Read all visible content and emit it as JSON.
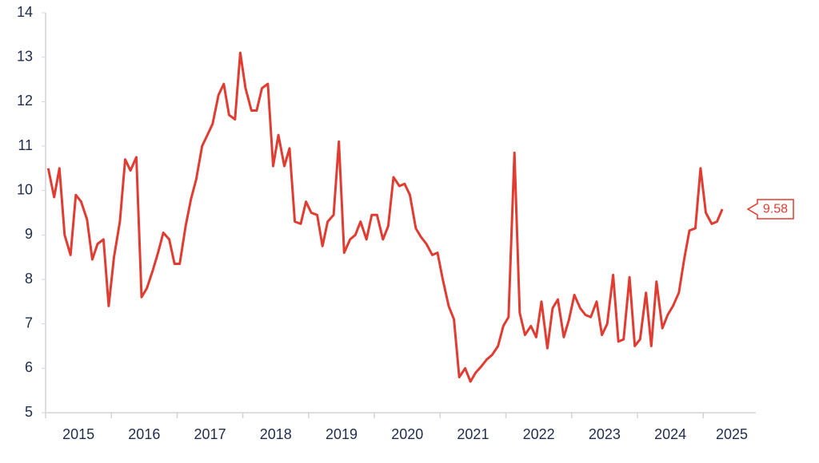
{
  "chart_data": {
    "type": "line",
    "x": [
      2015.04,
      2015.13,
      2015.21,
      2015.29,
      2015.38,
      2015.46,
      2015.54,
      2015.63,
      2015.71,
      2015.79,
      2015.88,
      2015.96,
      2016.04,
      2016.13,
      2016.21,
      2016.29,
      2016.38,
      2016.46,
      2016.54,
      2016.63,
      2016.71,
      2016.79,
      2016.88,
      2016.96,
      2017.04,
      2017.13,
      2017.21,
      2017.29,
      2017.38,
      2017.46,
      2017.54,
      2017.63,
      2017.71,
      2017.79,
      2017.88,
      2017.96,
      2018.04,
      2018.13,
      2018.21,
      2018.29,
      2018.38,
      2018.46,
      2018.54,
      2018.63,
      2018.71,
      2018.79,
      2018.88,
      2018.96,
      2019.04,
      2019.13,
      2019.21,
      2019.29,
      2019.38,
      2019.46,
      2019.54,
      2019.63,
      2019.71,
      2019.79,
      2019.88,
      2019.96,
      2020.04,
      2020.13,
      2020.21,
      2020.29,
      2020.38,
      2020.46,
      2020.54,
      2020.63,
      2020.71,
      2020.79,
      2020.88,
      2020.96,
      2021.04,
      2021.13,
      2021.21,
      2021.29,
      2021.38,
      2021.46,
      2021.54,
      2021.63,
      2021.71,
      2021.79,
      2021.88,
      2021.96,
      2022.04,
      2022.13,
      2022.21,
      2022.29,
      2022.38,
      2022.46,
      2022.54,
      2022.63,
      2022.71,
      2022.79,
      2022.88,
      2022.96,
      2023.04,
      2023.13,
      2023.21,
      2023.29,
      2023.38,
      2023.46,
      2023.54,
      2023.63,
      2023.71,
      2023.79,
      2023.88,
      2023.96,
      2024.04,
      2024.13,
      2024.21,
      2024.29,
      2024.38,
      2024.46,
      2024.54,
      2024.63,
      2024.71,
      2024.79,
      2024.88,
      2024.96,
      2025.04,
      2025.13,
      2025.21,
      2025.29
    ],
    "series": [
      {
        "color": "#e03c31",
        "values": [
          10.5,
          9.85,
          10.5,
          9.0,
          8.55,
          9.9,
          9.75,
          9.35,
          8.45,
          8.8,
          8.9,
          7.4,
          8.5,
          9.3,
          10.7,
          10.45,
          10.75,
          7.6,
          7.8,
          8.2,
          8.6,
          9.05,
          8.9,
          8.35,
          8.35,
          9.2,
          9.8,
          10.25,
          11.0,
          11.25,
          11.5,
          12.15,
          12.4,
          11.7,
          11.6,
          13.1,
          12.3,
          11.8,
          11.8,
          12.3,
          12.4,
          10.55,
          11.25,
          10.55,
          10.95,
          9.3,
          9.25,
          9.75,
          9.5,
          9.45,
          8.75,
          9.3,
          9.45,
          11.1,
          8.6,
          8.9,
          9.0,
          9.3,
          8.9,
          9.45,
          9.45,
          8.9,
          9.2,
          10.3,
          10.1,
          10.15,
          9.9,
          9.15,
          8.95,
          8.8,
          8.55,
          8.6,
          8.0,
          7.4,
          7.1,
          5.8,
          6.0,
          5.7,
          5.9,
          6.05,
          6.2,
          6.3,
          6.5,
          6.95,
          7.15,
          10.85,
          7.25,
          6.75,
          6.95,
          6.7,
          7.5,
          6.45,
          7.35,
          7.55,
          6.7,
          7.1,
          7.65,
          7.35,
          7.2,
          7.15,
          7.5,
          6.75,
          7.0,
          8.1,
          6.6,
          6.65,
          8.05,
          6.5,
          6.65,
          7.7,
          6.5,
          7.95,
          6.9,
          7.2,
          7.4,
          7.7,
          8.45,
          9.1,
          9.15,
          10.5,
          9.5,
          9.25,
          9.3,
          9.58
        ]
      }
    ],
    "xlim": [
      2015,
      2025.8
    ],
    "xticks": [
      2015,
      2016,
      2017,
      2018,
      2019,
      2020,
      2021,
      2022,
      2023,
      2024,
      2025
    ],
    "ylim": [
      5,
      14
    ],
    "yticks": [
      5,
      6,
      7,
      8,
      9,
      10,
      11,
      12,
      13,
      14
    ],
    "grid": false
  }
}
